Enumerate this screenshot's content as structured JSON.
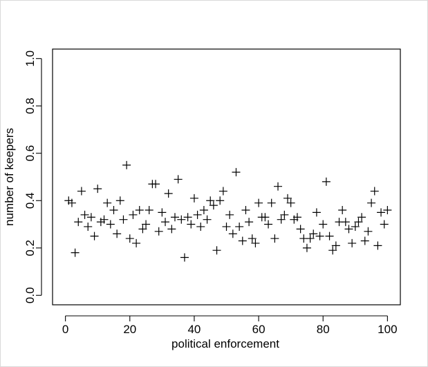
{
  "chart_data": {
    "type": "scatter",
    "marker": "plus",
    "title": "",
    "xlabel": "political enforcement",
    "ylabel": "number of keepers",
    "xlim": [
      -4,
      104
    ],
    "ylim": [
      -0.04,
      1.04
    ],
    "xticks": [
      0,
      20,
      40,
      60,
      80,
      100
    ],
    "yticks": [
      0.0,
      0.2,
      0.4,
      0.6,
      0.8,
      1.0
    ],
    "xtick_labels": [
      "0",
      "20",
      "40",
      "60",
      "80",
      "100"
    ],
    "ytick_labels": [
      "0.0",
      "0.2",
      "0.4",
      "0.6",
      "0.8",
      "1.0"
    ],
    "grid": false,
    "series": [
      {
        "x": [
          1,
          2,
          3,
          4,
          5,
          6,
          7,
          8,
          9,
          10,
          11,
          12,
          13,
          14,
          15,
          16,
          17,
          18,
          19,
          20,
          21,
          22,
          23,
          24,
          25,
          26,
          27,
          28,
          29,
          30,
          31,
          32,
          33,
          34,
          35,
          36,
          37,
          38,
          39,
          40,
          41,
          42,
          43,
          44,
          45,
          46,
          47,
          48,
          49,
          50,
          51,
          52,
          53,
          54,
          55,
          56,
          57,
          58,
          59,
          60,
          61,
          62,
          63,
          64,
          65,
          66,
          67,
          68,
          69,
          70,
          71,
          72,
          73,
          74,
          75,
          76,
          77,
          78,
          79,
          80,
          81,
          82,
          83,
          84,
          85,
          86,
          87,
          88,
          89,
          90,
          91,
          92,
          93,
          94,
          95,
          96,
          97,
          98,
          99,
          100
        ],
        "y": [
          0.4,
          0.39,
          0.18,
          0.31,
          0.44,
          0.34,
          0.29,
          0.33,
          0.25,
          0.45,
          0.31,
          0.32,
          0.39,
          0.3,
          0.36,
          0.26,
          0.4,
          0.32,
          0.55,
          0.24,
          0.34,
          0.22,
          0.36,
          0.28,
          0.3,
          0.36,
          0.47,
          0.47,
          0.27,
          0.35,
          0.31,
          0.43,
          0.28,
          0.33,
          0.49,
          0.32,
          0.16,
          0.33,
          0.3,
          0.41,
          0.34,
          0.29,
          0.36,
          0.32,
          0.4,
          0.38,
          0.19,
          0.4,
          0.44,
          0.29,
          0.34,
          0.26,
          0.52,
          0.29,
          0.23,
          0.36,
          0.31,
          0.24,
          0.22,
          0.39,
          0.33,
          0.33,
          0.3,
          0.39,
          0.24,
          0.46,
          0.32,
          0.34,
          0.41,
          0.39,
          0.32,
          0.33,
          0.28,
          0.24,
          0.2,
          0.24,
          0.26,
          0.35,
          0.25,
          0.3,
          0.48,
          0.25,
          0.19,
          0.21,
          0.31,
          0.36,
          0.31,
          0.28,
          0.22,
          0.29,
          0.31,
          0.33,
          0.23,
          0.27,
          0.39,
          0.44,
          0.21,
          0.35,
          0.3,
          0.36
        ]
      }
    ]
  }
}
